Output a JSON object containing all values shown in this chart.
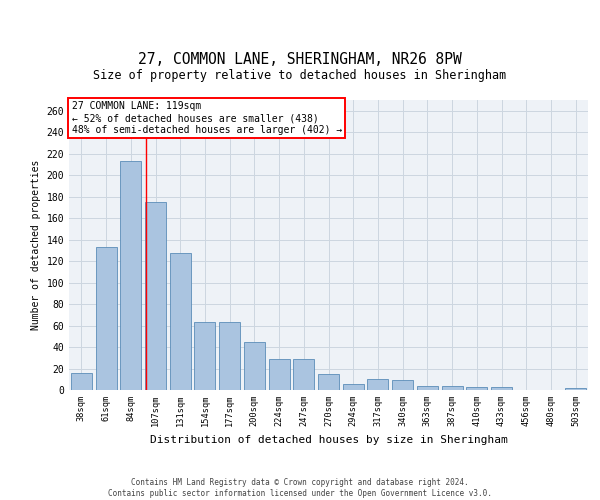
{
  "title1": "27, COMMON LANE, SHERINGHAM, NR26 8PW",
  "title2": "Size of property relative to detached houses in Sheringham",
  "xlabel": "Distribution of detached houses by size in Sheringham",
  "ylabel": "Number of detached properties",
  "categories": [
    "38sqm",
    "61sqm",
    "84sqm",
    "107sqm",
    "131sqm",
    "154sqm",
    "177sqm",
    "200sqm",
    "224sqm",
    "247sqm",
    "270sqm",
    "294sqm",
    "317sqm",
    "340sqm",
    "363sqm",
    "387sqm",
    "410sqm",
    "433sqm",
    "456sqm",
    "480sqm",
    "503sqm"
  ],
  "values": [
    16,
    133,
    213,
    175,
    128,
    63,
    63,
    45,
    29,
    29,
    15,
    6,
    10,
    9,
    4,
    4,
    3,
    3,
    0,
    0,
    2
  ],
  "bar_color": "#aac4e0",
  "bar_edge_color": "#5b8db8",
  "red_line_index": 2.6,
  "annotation_line1": "27 COMMON LANE: 119sqm",
  "annotation_line2": "← 52% of detached houses are smaller (438)",
  "annotation_line3": "48% of semi-detached houses are larger (402) →",
  "annotation_box_color": "white",
  "annotation_box_edge": "red",
  "ylim": [
    0,
    270
  ],
  "yticks": [
    0,
    20,
    40,
    60,
    80,
    100,
    120,
    140,
    160,
    180,
    200,
    220,
    240,
    260
  ],
  "footer1": "Contains HM Land Registry data © Crown copyright and database right 2024.",
  "footer2": "Contains public sector information licensed under the Open Government Licence v3.0.",
  "bg_color": "#eef2f7",
  "grid_color": "#ccd6e0"
}
